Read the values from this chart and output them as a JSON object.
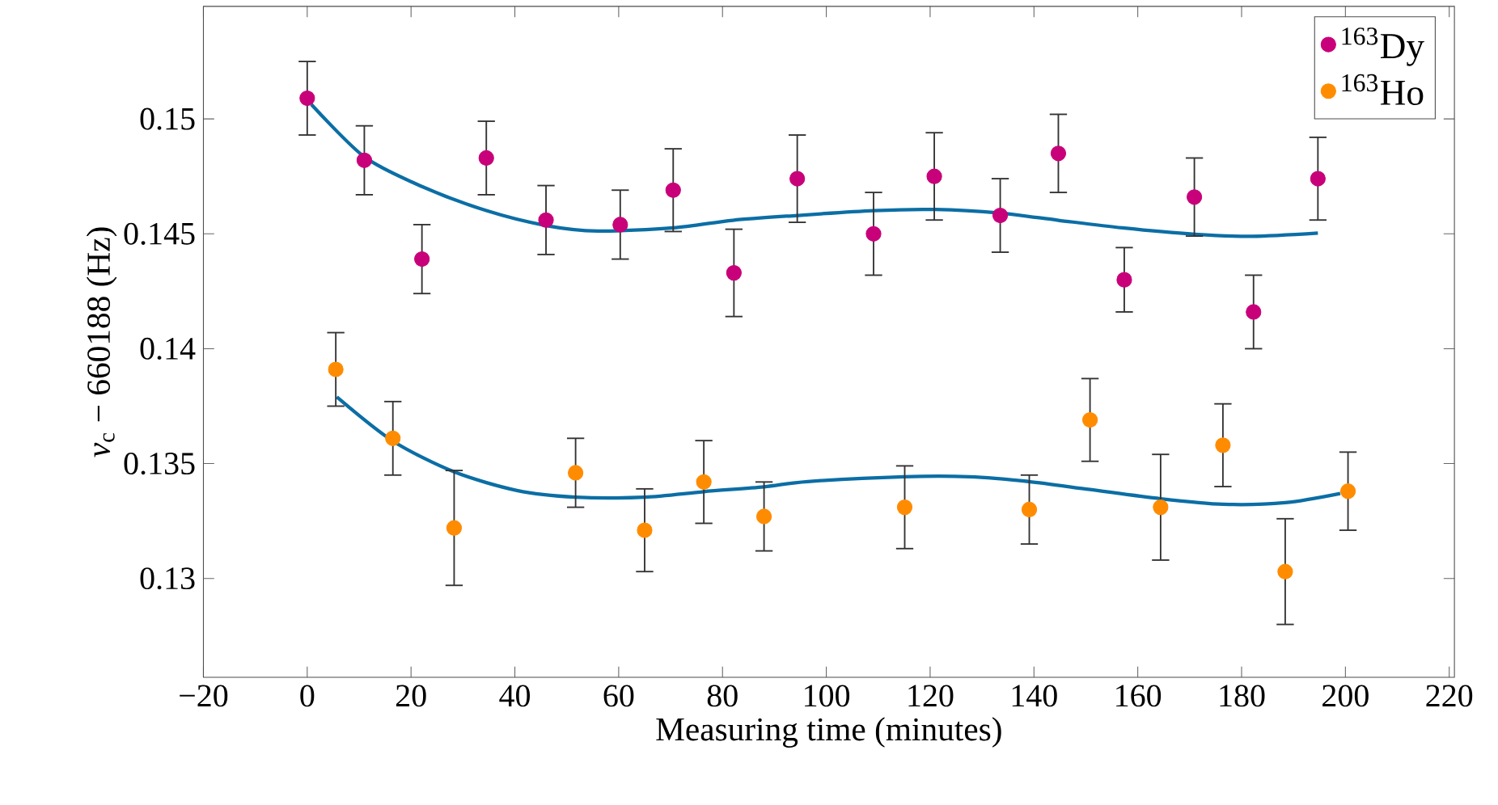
{
  "chart_data": {
    "type": "scatter",
    "xlabel": "Measuring time (minutes)",
    "ylabel": "*ν*$_{c}$ − 660188 (Hz)",
    "xlim": [
      -20,
      221
    ],
    "ylim": [
      0.1257,
      0.1549
    ],
    "xticks": [
      {
        "value": -20,
        "label": "−20"
      },
      0,
      20,
      40,
      60,
      80,
      100,
      120,
      140,
      160,
      180,
      200,
      220
    ],
    "yticks": [
      0.13,
      0.135,
      0.14,
      0.145,
      0.15
    ],
    "grid": false,
    "legend": "top right",
    "marker": "circle",
    "series": [
      {
        "name": "$^{163}$Dy",
        "color": "#c8007a",
        "x": [
          0,
          11.0,
          22.1,
          34.5,
          46.0,
          60.3,
          70.5,
          82.2,
          94.4,
          109.1,
          120.8,
          133.5,
          144.7,
          157.4,
          170.9,
          182.3,
          194.7
        ],
        "values": [
          0.1509,
          0.1482,
          0.1439,
          0.1483,
          0.1456,
          0.1454,
          0.1469,
          0.1433,
          0.1474,
          0.145,
          0.1475,
          0.1458,
          0.1485,
          0.143,
          0.1466,
          0.1416,
          0.1474
        ],
        "errors": [
          0.0016,
          0.0015,
          0.0015,
          0.0016,
          0.0015,
          0.0015,
          0.0018,
          0.0019,
          0.0019,
          0.0018,
          0.0019,
          0.0016,
          0.0017,
          0.0014,
          0.0017,
          0.0016,
          0.0018
        ]
      },
      {
        "name": "$^{163}$Ho",
        "color": "#ff8c00",
        "x": [
          5.5,
          16.5,
          28.3,
          51.7,
          65.0,
          76.4,
          88.0,
          115.1,
          139.1,
          150.8,
          164.4,
          176.4,
          188.4,
          200.5
        ],
        "values": [
          0.1391,
          0.1361,
          0.1322,
          0.1346,
          0.1321,
          0.1342,
          0.1327,
          0.1331,
          0.133,
          0.1369,
          0.1331,
          0.1358,
          0.1303,
          0.1338
        ],
        "errors": [
          0.0016,
          0.0016,
          0.0025,
          0.0015,
          0.0018,
          0.0018,
          0.0015,
          0.0018,
          0.0015,
          0.0018,
          0.0023,
          0.0018,
          0.0023,
          0.0017
        ]
      },
      {
        "type": "line",
        "marker": "none",
        "color": "#0b6ea5",
        "x": [
          0.8,
          11,
          22,
          34.5,
          46,
          56,
          70.5,
          82,
          94.4,
          109,
          121,
          133.5,
          144.7,
          157,
          171,
          182,
          194.7
        ],
        "values": [
          0.15063,
          0.14835,
          0.14707,
          0.14601,
          0.14536,
          0.14512,
          0.14526,
          0.14559,
          0.1458,
          0.14601,
          0.14606,
          0.1459,
          0.14559,
          0.14526,
          0.14498,
          0.14489,
          0.14503
        ]
      },
      {
        "type": "line",
        "marker": "none",
        "color": "#0b6ea5",
        "x": [
          5.7,
          16.5,
          28.3,
          40.4,
          51.7,
          65,
          76.4,
          88,
          96.4,
          115,
          127.5,
          139,
          150.8,
          164.4,
          176.4,
          188.4,
          199
        ],
        "values": [
          0.1379,
          0.13598,
          0.13464,
          0.13383,
          0.13354,
          0.13354,
          0.13378,
          0.13399,
          0.13422,
          0.13443,
          0.13443,
          0.13422,
          0.13387,
          0.13347,
          0.13323,
          0.1333,
          0.1337
        ]
      }
    ]
  }
}
